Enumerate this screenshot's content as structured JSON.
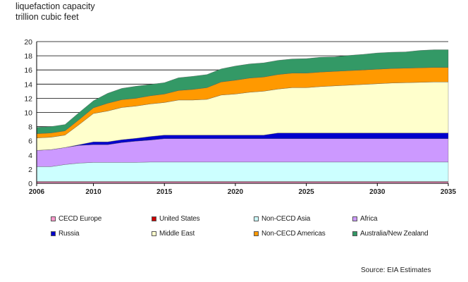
{
  "header": {
    "title_line1": "liquefaction capacity",
    "title_line2": "trillion cubic feet"
  },
  "source": "Source: EIA Estimates",
  "chart_data": {
    "type": "area",
    "stacked": true,
    "title": "liquefaction capacity",
    "ylabel": "trillion cubic feet",
    "xlim": [
      2006,
      2035
    ],
    "ylim": [
      0,
      20
    ],
    "x_ticks": [
      2006,
      2010,
      2015,
      2020,
      2025,
      2030,
      2035
    ],
    "y_ticks": [
      0,
      2,
      4,
      6,
      8,
      10,
      12,
      14,
      16,
      18,
      20
    ],
    "grid": "horizontal",
    "legend_position": "bottom",
    "x": [
      2006,
      2007,
      2008,
      2009,
      2010,
      2011,
      2012,
      2013,
      2014,
      2015,
      2016,
      2017,
      2018,
      2019,
      2020,
      2021,
      2022,
      2023,
      2024,
      2025,
      2026,
      2027,
      2028,
      2029,
      2030,
      2031,
      2032,
      2033,
      2034,
      2035
    ],
    "series": [
      {
        "name": "CECD Europe",
        "color": "#ff99cc",
        "values": [
          0.2,
          0.2,
          0.2,
          0.2,
          0.2,
          0.2,
          0.2,
          0.2,
          0.2,
          0.2,
          0.2,
          0.2,
          0.2,
          0.2,
          0.2,
          0.2,
          0.2,
          0.2,
          0.2,
          0.2,
          0.2,
          0.2,
          0.2,
          0.2,
          0.2,
          0.2,
          0.2,
          0.2,
          0.2,
          0.2
        ]
      },
      {
        "name": "United States",
        "color": "#cc0000",
        "values": [
          0.05,
          0.05,
          0.05,
          0.05,
          0.05,
          0.05,
          0.05,
          0.05,
          0.05,
          0.05,
          0.05,
          0.05,
          0.05,
          0.05,
          0.05,
          0.05,
          0.05,
          0.05,
          0.05,
          0.05,
          0.05,
          0.05,
          0.05,
          0.05,
          0.05,
          0.05,
          0.05,
          0.05,
          0.05,
          0.05
        ]
      },
      {
        "name": "Non-CECD Asia",
        "color": "#ccffff",
        "values": [
          2.1,
          2.1,
          2.4,
          2.6,
          2.7,
          2.7,
          2.7,
          2.7,
          2.75,
          2.75,
          2.75,
          2.75,
          2.75,
          2.75,
          2.75,
          2.75,
          2.75,
          2.75,
          2.75,
          2.75,
          2.75,
          2.75,
          2.75,
          2.75,
          2.75,
          2.75,
          2.75,
          2.75,
          2.75,
          2.75
        ]
      },
      {
        "name": "Africa",
        "color": "#cc99ff",
        "values": [
          2.3,
          2.4,
          2.4,
          2.5,
          2.5,
          2.5,
          2.8,
          3.0,
          3.1,
          3.3,
          3.3,
          3.3,
          3.3,
          3.3,
          3.3,
          3.3,
          3.3,
          3.3,
          3.3,
          3.3,
          3.3,
          3.3,
          3.3,
          3.3,
          3.3,
          3.3,
          3.3,
          3.3,
          3.3,
          3.3
        ]
      },
      {
        "name": "Russia",
        "color": "#0000cc",
        "values": [
          0,
          0,
          0,
          0.1,
          0.4,
          0.4,
          0.4,
          0.4,
          0.5,
          0.5,
          0.5,
          0.5,
          0.5,
          0.5,
          0.5,
          0.5,
          0.5,
          0.8,
          0.8,
          0.8,
          0.8,
          0.8,
          0.8,
          0.8,
          0.8,
          0.8,
          0.8,
          0.8,
          0.8,
          0.8
        ]
      },
      {
        "name": "Middle East",
        "color": "#ffffcc",
        "values": [
          1.75,
          1.75,
          1.75,
          2.85,
          4.0,
          4.35,
          4.55,
          4.55,
          4.6,
          4.6,
          4.95,
          4.95,
          5.05,
          5.65,
          5.8,
          6.05,
          6.2,
          6.2,
          6.4,
          6.4,
          6.55,
          6.65,
          6.75,
          6.85,
          6.95,
          7.05,
          7.1,
          7.15,
          7.2,
          7.2
        ]
      },
      {
        "name": "Non-CECD Americas",
        "color": "#ff9900",
        "values": [
          0.6,
          0.6,
          0.6,
          0.7,
          0.8,
          1.1,
          1.1,
          1.1,
          1.15,
          1.2,
          1.35,
          1.5,
          1.65,
          1.85,
          1.95,
          2.0,
          2.0,
          2.05,
          2.05,
          2.05,
          2.05,
          2.05,
          2.05,
          2.05,
          2.05,
          2.05,
          2.05,
          2.05,
          2.05,
          2.05
        ]
      },
      {
        "name": "Australia/New Zealand",
        "color": "#339966",
        "values": [
          0.9,
          0.9,
          0.9,
          1.0,
          1.0,
          1.4,
          1.6,
          1.7,
          1.6,
          1.6,
          1.8,
          1.85,
          1.85,
          1.85,
          2.0,
          2.0,
          2.0,
          2.0,
          2.0,
          2.05,
          2.1,
          2.05,
          2.15,
          2.2,
          2.3,
          2.3,
          2.3,
          2.45,
          2.5,
          2.5
        ]
      }
    ]
  }
}
